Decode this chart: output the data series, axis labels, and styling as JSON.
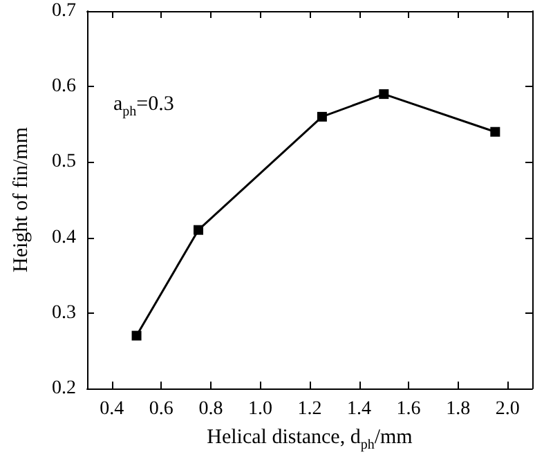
{
  "chart_data": {
    "type": "line",
    "xlabel": "Helical distance, d$_{ph}$/mm",
    "ylabel": "Height of fin/mm",
    "annotations": [
      "a$_{ph}$=0.3"
    ],
    "x": [
      0.5,
      0.75,
      1.25,
      1.5,
      1.95
    ],
    "series": [
      {
        "color": "#000000",
        "values": [
          0.27,
          0.41,
          0.56,
          0.59,
          0.54
        ]
      }
    ],
    "marker": "square",
    "xlim": [
      0.3,
      2.1
    ],
    "xticks": [
      0.4,
      0.6,
      0.8,
      {
        "value": 1,
        "label": "1.0"
      },
      1.2,
      1.4,
      1.6,
      1.8,
      {
        "value": 2,
        "label": "2.0"
      }
    ],
    "ylim": [
      0.2,
      0.7
    ],
    "yticks": [
      0.2,
      0.3,
      0.4,
      0.5,
      0.6,
      0.7
    ]
  }
}
